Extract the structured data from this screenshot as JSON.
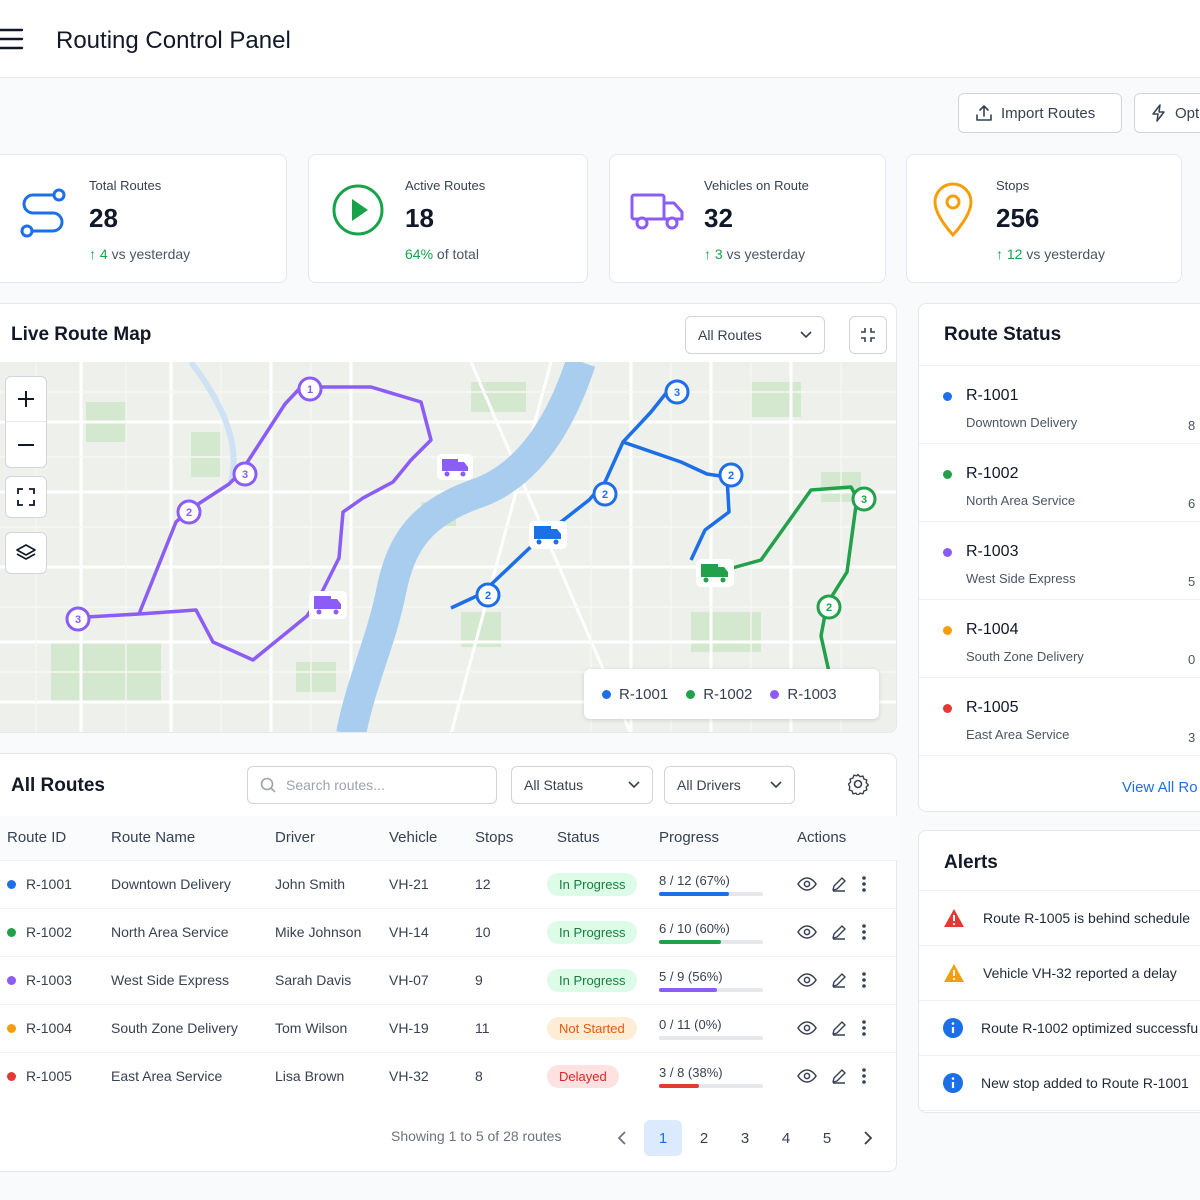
{
  "header": {
    "title": "Routing Control Panel"
  },
  "toolbar": {
    "import_label": "Import Routes",
    "optimize_label": "Opt"
  },
  "stats": [
    {
      "label": "Total Routes",
      "value": "28",
      "delta": "4",
      "suffix": "vs yesterday"
    },
    {
      "label": "Active Routes",
      "value": "18",
      "delta": "64%",
      "suffix": "of total"
    },
    {
      "label": "Vehicles on Route",
      "value": "32",
      "delta": "3",
      "suffix": "vs yesterday"
    },
    {
      "label": "Stops",
      "value": "256",
      "delta": "12",
      "suffix": "vs yesterday"
    }
  ],
  "map": {
    "title": "Live Route Map",
    "filter": "All Routes",
    "legend": [
      "R-1001",
      "R-1002",
      "R-1003"
    ],
    "route_colors": {
      "R-1001": "#1d6fe8",
      "R-1002": "#22a04a",
      "R-1003": "#8b5cf6"
    }
  },
  "routes_table": {
    "title": "All Routes",
    "search_placeholder": "Search routes...",
    "status_filter": "All Status",
    "driver_filter": "All Drivers",
    "columns": [
      "Route ID",
      "Route Name",
      "Driver",
      "Vehicle",
      "Stops",
      "Status",
      "Progress",
      "Actions"
    ],
    "rows": [
      {
        "id": "R-1001",
        "name": "Downtown Delivery",
        "driver": "John Smith",
        "vehicle": "VH-21",
        "stops": "12",
        "status": "In Progress",
        "progress": "8 / 12 (67%)",
        "pct": 67,
        "color": "#1d6fe8"
      },
      {
        "id": "R-1002",
        "name": "North Area Service",
        "driver": "Mike Johnson",
        "vehicle": "VH-14",
        "stops": "10",
        "status": "In Progress",
        "progress": "6 / 10 (60%)",
        "pct": 60,
        "color": "#22a04a"
      },
      {
        "id": "R-1003",
        "name": "West Side Express",
        "driver": "Sarah Davis",
        "vehicle": "VH-07",
        "stops": "9",
        "status": "In Progress",
        "progress": "5 / 9 (56%)",
        "pct": 56,
        "color": "#8b5cf6"
      },
      {
        "id": "R-1004",
        "name": "South Zone Delivery",
        "driver": "Tom Wilson",
        "vehicle": "VH-19",
        "stops": "11",
        "status": "Not Started",
        "progress": "0 / 11 (0%)",
        "pct": 0,
        "color": "#f59e0b"
      },
      {
        "id": "R-1005",
        "name": "East Area Service",
        "driver": "Lisa Brown",
        "vehicle": "VH-32",
        "stops": "8",
        "status": "Delayed",
        "progress": "3 / 8 (38%)",
        "pct": 38,
        "color": "#e53935"
      }
    ],
    "footer": "Showing 1 to 5 of 28 routes",
    "pages": [
      "1",
      "2",
      "3",
      "4",
      "5"
    ],
    "current_page": "1"
  },
  "route_status": {
    "title": "Route Status",
    "items": [
      {
        "id": "R-1001",
        "name": "Downtown Delivery",
        "value": "8",
        "color": "#1d6fe8"
      },
      {
        "id": "R-1002",
        "name": "North Area Service",
        "value": "6",
        "color": "#22a04a"
      },
      {
        "id": "R-1003",
        "name": "West Side Express",
        "value": "5",
        "color": "#8b5cf6"
      },
      {
        "id": "R-1004",
        "name": "South Zone Delivery",
        "value": "0",
        "color": "#f59e0b"
      },
      {
        "id": "R-1005",
        "name": "East Area Service",
        "value": "3",
        "color": "#e53935"
      }
    ],
    "view_all": "View All Ro"
  },
  "alerts": {
    "title": "Alerts",
    "items": [
      {
        "text": "Route R-1005 is behind schedule",
        "icon": "error-triangle-icon"
      },
      {
        "text": "Vehicle VH-32 reported a delay",
        "icon": "warning-triangle-icon"
      },
      {
        "text": "Route R-1002 optimized successfu",
        "icon": "info-circle-icon"
      },
      {
        "text": "New stop added to Route R-1001",
        "icon": "info-circle-icon"
      }
    ]
  }
}
